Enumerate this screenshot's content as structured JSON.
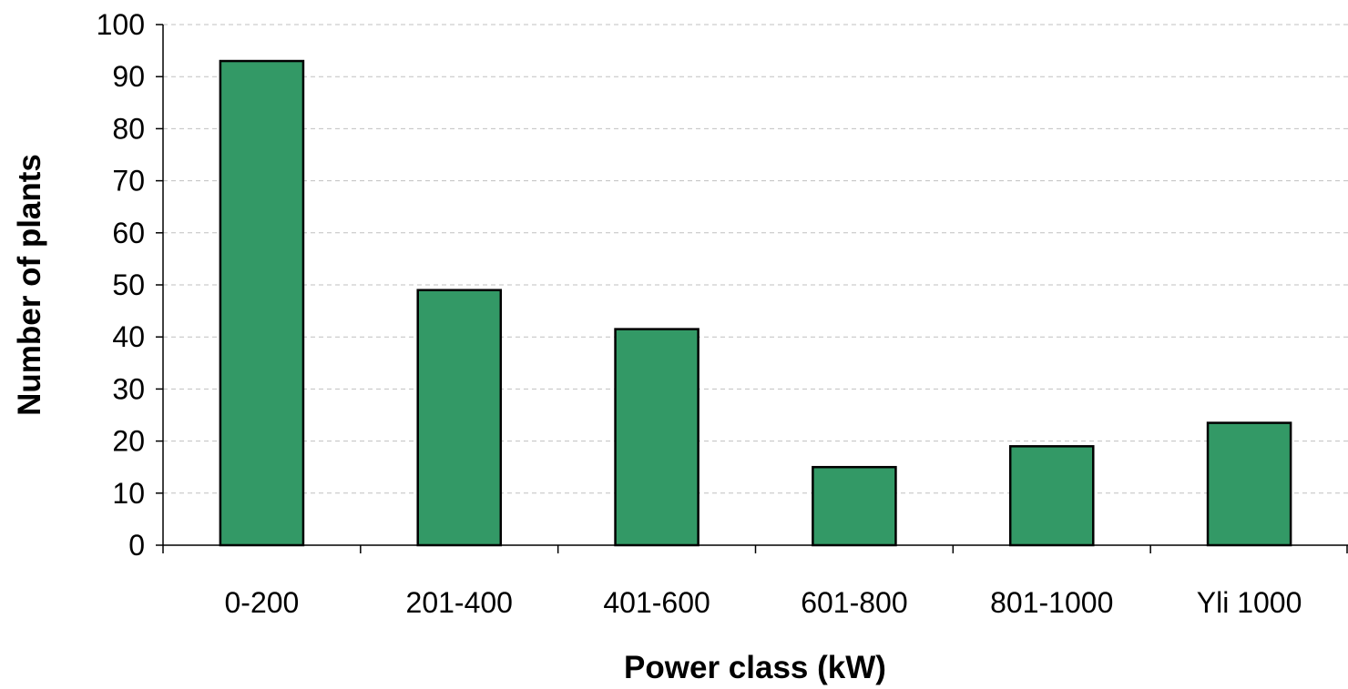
{
  "chart_data": {
    "type": "bar",
    "categories": [
      "0-200",
      "201-400",
      "401-600",
      "601-800",
      "801-1000",
      "Yli 1000"
    ],
    "values": [
      93,
      49,
      41.5,
      15,
      19,
      23.5
    ],
    "xlabel": "Power class (kW)",
    "ylabel": "Number of plants",
    "ylim": [
      0,
      100
    ],
    "yticks": [
      "0",
      "10",
      "20",
      "30",
      "40",
      "50",
      "60",
      "70",
      "80",
      "90",
      "100"
    ],
    "grid": true,
    "legend": "none",
    "colors": {
      "bar_fill": "#339966",
      "bar_stroke": "#000000",
      "grid": "#c0c0c0",
      "axis": "#000000"
    }
  }
}
